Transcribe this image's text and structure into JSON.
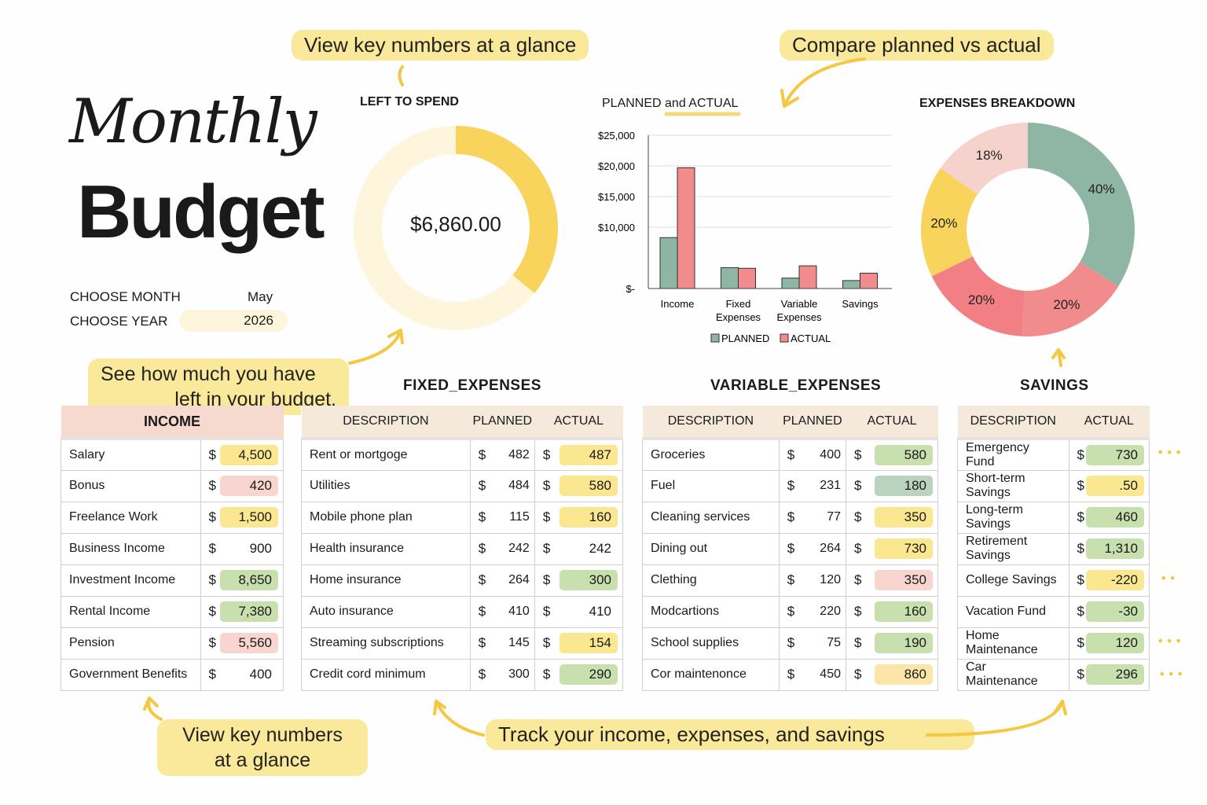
{
  "header": {
    "title_script": "Monthly",
    "title_bold": "Budget"
  },
  "selectors": {
    "month_label": "CHOOSE MONTH",
    "month_value": "May",
    "year_label": "CHOOSE YEAR",
    "year_value": "2026"
  },
  "callouts": {
    "top_left": "View key numbers at a glance",
    "top_right": "Compare planned vs actual",
    "middle": [
      "See how much you have",
      "left in your budget."
    ],
    "bottom_left": [
      "View key numbers",
      "at a glance"
    ],
    "bottom_center": "Track your income, expenses, and savings"
  },
  "left_to_spend": {
    "title": "LEFT TO SPEND",
    "amount": "$6,860.00",
    "fill_fraction": 0.36,
    "color": "#f9d45c",
    "track_color": "#fdf5dc"
  },
  "chart_data": [
    {
      "type": "bar",
      "title": "PLANNED and ACTUAL",
      "categories": [
        "Income",
        "Fixed Expenses",
        "Variable Expenses",
        "Savings"
      ],
      "series": [
        {
          "name": "PLANNED",
          "color": "#8fb5a5",
          "values": [
            8300,
            3400,
            1700,
            1300
          ]
        },
        {
          "name": "ACTUAL",
          "color": "#f28b8b",
          "values": [
            19700,
            3300,
            3700,
            2500
          ]
        }
      ],
      "ylim": [
        0,
        25000
      ],
      "yticks": [
        {
          "value": 0,
          "label": "$-"
        },
        {
          "value": 10000,
          "label": "$10,000"
        },
        {
          "value": 15000,
          "label": "$15,000"
        },
        {
          "value": 20000,
          "label": "$20,000"
        },
        {
          "value": 25000,
          "label": "$25,000"
        }
      ],
      "grid": true,
      "legend": "bottom"
    },
    {
      "type": "pie",
      "title": "EXPENSES BREAKDOWN",
      "donut": true,
      "slices": [
        {
          "label": "40%",
          "value": 40,
          "color": "#8fb5a5"
        },
        {
          "label": "20%",
          "value": 20,
          "color": "#f28b8b"
        },
        {
          "label": "20%",
          "value": 20,
          "color": "#f27f84"
        },
        {
          "label": "20%",
          "value": 20,
          "color": "#f9d45c"
        },
        {
          "label": "18%",
          "value": 18,
          "color": "#f5d3cc"
        }
      ]
    }
  ],
  "income": {
    "title": "INCOME",
    "rows": [
      {
        "desc": "Salary",
        "cur": "$",
        "actual": "4,500",
        "hl": "y"
      },
      {
        "desc": "Bonus",
        "cur": "$",
        "actual": "420",
        "hl": "p"
      },
      {
        "desc": "Freelance Work",
        "cur": "$",
        "actual": "1,500",
        "hl": "y"
      },
      {
        "desc": "Business Income",
        "cur": "$",
        "actual": "900",
        "hl": ""
      },
      {
        "desc": "Investment Income",
        "cur": "$",
        "actual": "8,650",
        "hl": "g"
      },
      {
        "desc": "Rental Income",
        "cur": "$",
        "actual": "7,380",
        "hl": "g"
      },
      {
        "desc": "Pension",
        "cur": "$",
        "actual": "5,560",
        "hl": "p"
      },
      {
        "desc": "Government Benefits",
        "cur": "$",
        "actual": "400",
        "hl": ""
      }
    ]
  },
  "fixed": {
    "title": "FIXED_EXPENSES",
    "headers": [
      "DESCRIPTION",
      "PLANNED",
      "ACTUAL"
    ],
    "rows": [
      {
        "desc": "Rent or mortgoge",
        "planned": "482",
        "actual": "487",
        "hl": "y"
      },
      {
        "desc": "Utilities",
        "planned": "484",
        "actual": "580",
        "hl": "y"
      },
      {
        "desc": "Mobile phone plan",
        "planned": "115",
        "actual": "160",
        "hl": "y"
      },
      {
        "desc": "Health insurance",
        "planned": "242",
        "actual": "242",
        "hl": ""
      },
      {
        "desc": "Home insurance",
        "planned": "264",
        "actual": "300",
        "hl": "g"
      },
      {
        "desc": "Auto insurance",
        "planned": "410",
        "actual": "410",
        "hl": ""
      },
      {
        "desc": "Streaming subscriptions",
        "planned": "145",
        "actual": "154",
        "hl": "y"
      },
      {
        "desc": "Credit cord minimum",
        "planned": "300",
        "actual": "290",
        "hl": "g"
      }
    ]
  },
  "variable": {
    "title": "VARIABLE_EXPENSES",
    "headers": [
      "DESCRIPTION",
      "PLANNED",
      "ACTUAL"
    ],
    "rows": [
      {
        "desc": "Groceries",
        "planned": "400",
        "actual": "580",
        "hl": "g"
      },
      {
        "desc": "Fuel",
        "planned": "231",
        "actual": "180",
        "hl": "t"
      },
      {
        "desc": "Cleaning services",
        "planned": "77",
        "actual": "350",
        "hl": "y"
      },
      {
        "desc": "Dining out",
        "planned": "264",
        "actual": "730",
        "hl": "y"
      },
      {
        "desc": "Clething",
        "planned": "120",
        "actual": "350",
        "hl": "p"
      },
      {
        "desc": "Modcartions",
        "planned": "220",
        "actual": "160",
        "hl": "g"
      },
      {
        "desc": "School supplies",
        "planned": "75",
        "actual": "190",
        "hl": "g"
      },
      {
        "desc": "Cor maintenonce",
        "planned": "450",
        "actual": "860",
        "hl": "o"
      }
    ]
  },
  "savings": {
    "title": "SAVINGS",
    "headers": [
      "DESCRIPTION",
      "ACTUAL"
    ],
    "rows": [
      {
        "desc": "Emergency Fund",
        "actual": "730",
        "hl": "g"
      },
      {
        "desc": "Short-term Savings",
        "actual": ".50",
        "hl": "y"
      },
      {
        "desc": "Long-term Savings",
        "actual": "460",
        "hl": "g"
      },
      {
        "desc": "Retirement Savings",
        "actual": "1,310",
        "hl": "g"
      },
      {
        "desc": "College Savings",
        "actual": "-220",
        "hl": "y"
      },
      {
        "desc": "Vacation Fund",
        "actual": "-30",
        "hl": "g"
      },
      {
        "desc": "Home Maintenance",
        "actual": "120",
        "hl": "g"
      },
      {
        "desc": "Car Maintenance",
        "actual": "296",
        "hl": "g"
      }
    ]
  },
  "currency": "$"
}
